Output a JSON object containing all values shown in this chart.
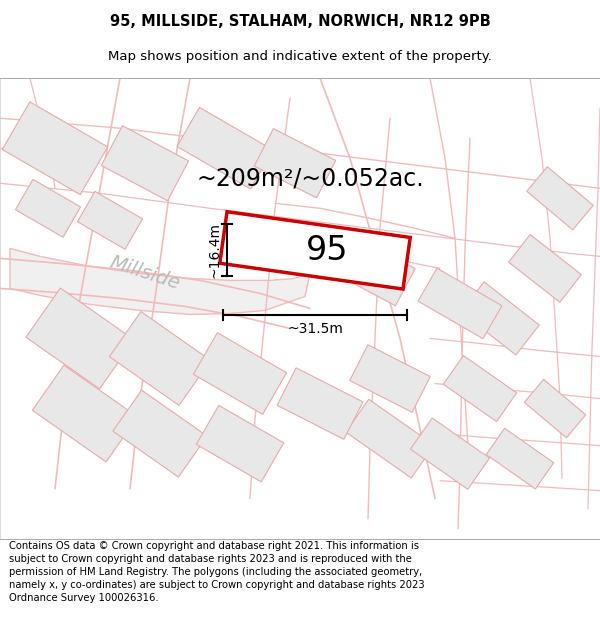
{
  "title_line1": "95, MILLSIDE, STALHAM, NORWICH, NR12 9PB",
  "title_line2": "Map shows position and indicative extent of the property.",
  "footer_text": "Contains OS data © Crown copyright and database right 2021. This information is subject to Crown copyright and database rights 2023 and is reproduced with the permission of HM Land Registry. The polygons (including the associated geometry, namely x, y co-ordinates) are subject to Crown copyright and database rights 2023 Ordnance Survey 100026316.",
  "area_label": "~209m²/~0.052ac.",
  "plot_number": "95",
  "width_label": "~31.5m",
  "height_label": "~16.4m",
  "map_bg": "#ffffff",
  "building_fill": "#e8e8e8",
  "building_edge": "#e8aaaa",
  "road_color": "#f0bbbb",
  "highlight_color": "#cc0000",
  "dim_line_color": "#000000",
  "street_label_color": "#bbbbbb",
  "street_label": "Millside",
  "title_fontsize": 10.5,
  "subtitle_fontsize": 9.5,
  "footer_fontsize": 7.2,
  "area_fontsize": 17,
  "plot_num_fontsize": 24,
  "dim_fontsize": 10,
  "street_fontsize": 14
}
